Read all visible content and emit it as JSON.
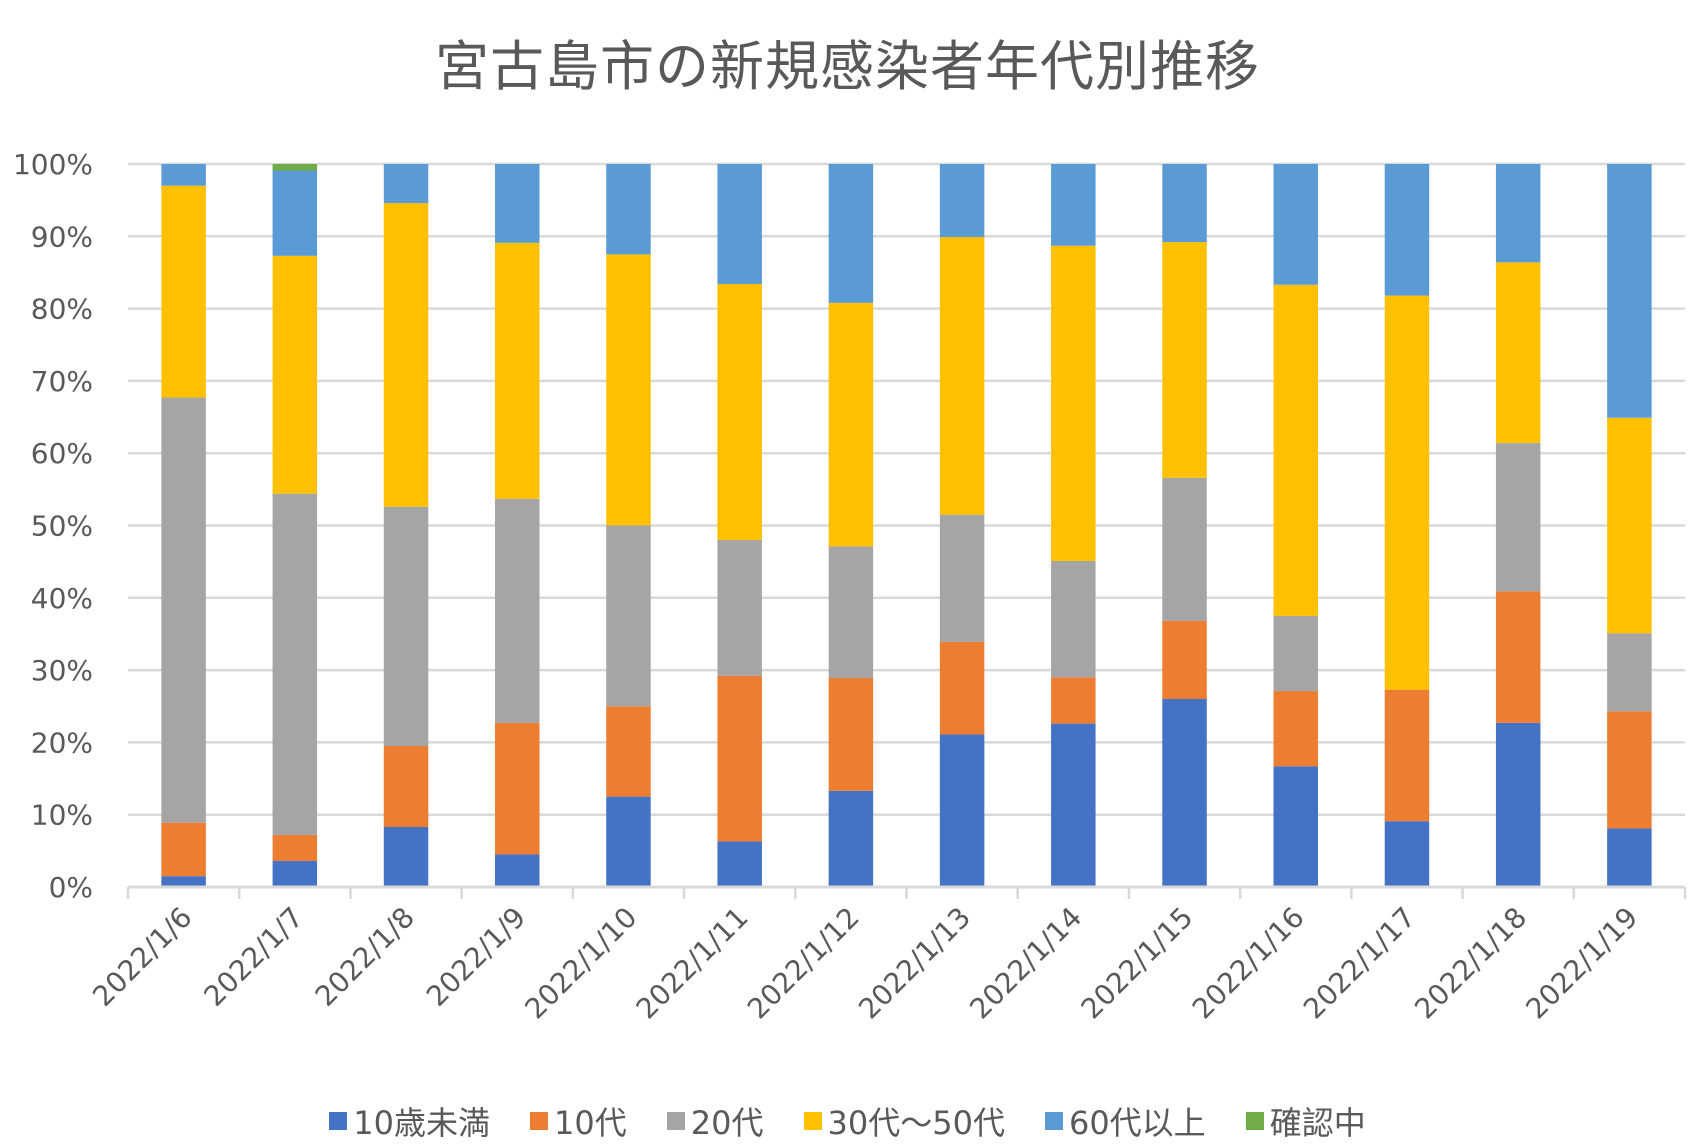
{
  "chart_data": {
    "type": "bar",
    "stacked": "percent",
    "title": "宮古島市の新規感染者年代別推移",
    "xlabel": "",
    "ylabel": "",
    "ylim": [
      0,
      100
    ],
    "y_ticks": [
      "0%",
      "10%",
      "20%",
      "30%",
      "40%",
      "50%",
      "60%",
      "70%",
      "80%",
      "90%",
      "100%"
    ],
    "grid": true,
    "legend_position": "bottom",
    "categories": [
      "2022/1/6",
      "2022/1/7",
      "2022/1/8",
      "2022/1/9",
      "2022/1/10",
      "2022/1/11",
      "2022/1/12",
      "2022/1/13",
      "2022/1/14",
      "2022/1/15",
      "2022/1/16",
      "2022/1/17",
      "2022/1/18",
      "2022/1/19"
    ],
    "series": [
      {
        "name": "10歳未満",
        "color": "#4472C4",
        "values": [
          1.5,
          3.6,
          8.3,
          4.5,
          12.5,
          6.3,
          13.3,
          21.1,
          22.6,
          26.0,
          16.7,
          9.1,
          22.7,
          8.1
        ]
      },
      {
        "name": "10代",
        "color": "#ED7D31",
        "values": [
          7.4,
          3.6,
          11.2,
          18.2,
          12.5,
          22.9,
          15.6,
          12.8,
          6.4,
          10.8,
          10.4,
          18.2,
          18.2,
          16.2
        ]
      },
      {
        "name": "20代",
        "color": "#A5A5A5",
        "values": [
          58.8,
          47.2,
          33.1,
          31.0,
          25.0,
          18.8,
          18.2,
          17.6,
          16.1,
          19.8,
          10.4,
          0.0,
          20.5,
          10.8
        ]
      },
      {
        "name": "30代～50代",
        "color": "#FFC000",
        "values": [
          29.3,
          32.9,
          42.0,
          35.4,
          37.5,
          35.4,
          33.7,
          38.4,
          43.6,
          32.6,
          45.8,
          54.5,
          25.0,
          29.8
        ]
      },
      {
        "name": "60代以上",
        "color": "#5B9BD5",
        "values": [
          3.0,
          11.8,
          5.4,
          10.9,
          12.5,
          16.6,
          19.2,
          10.1,
          11.3,
          10.8,
          16.7,
          18.2,
          13.6,
          35.1
        ]
      },
      {
        "name": "確認中",
        "color": "#70AD47",
        "values": [
          0.0,
          0.9,
          0.0,
          0.0,
          0.0,
          0.0,
          0.0,
          0.0,
          0.0,
          0.0,
          0.0,
          0.0,
          0.0,
          0.0
        ]
      }
    ]
  }
}
